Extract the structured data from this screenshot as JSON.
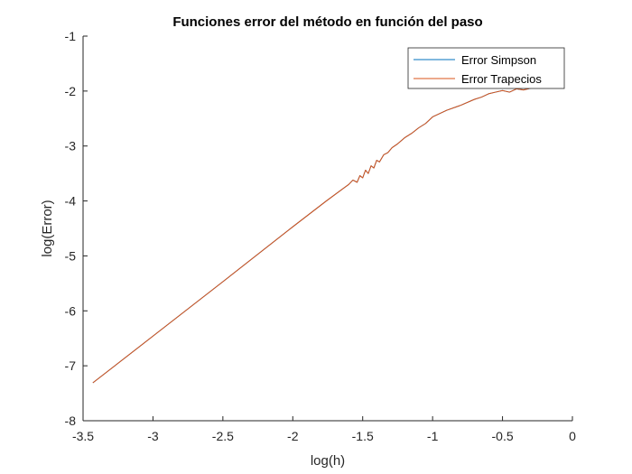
{
  "chart_data": {
    "type": "line",
    "title": "Funciones error del método en función del paso",
    "xlabel": "log(h)",
    "ylabel": "log(Error)",
    "xlim": [
      -3.5,
      0
    ],
    "ylim": [
      -8,
      -1
    ],
    "xticks": [
      -3.5,
      -3,
      -2.5,
      -2,
      -1.5,
      -1,
      -0.5,
      0
    ],
    "xtick_labels": [
      "-3.5",
      "-3",
      "-2.5",
      "-2",
      "-1.5",
      "-1",
      "-0.5",
      "0"
    ],
    "yticks": [
      -8,
      -7,
      -6,
      -5,
      -4,
      -3,
      -2,
      -1
    ],
    "ytick_labels": [
      "-8",
      "-7",
      "-6",
      "-5",
      "-4",
      "-3",
      "-2",
      "-1"
    ],
    "grid": false,
    "legend_position": "top-right",
    "series": [
      {
        "name": "Error Simpson",
        "color": "#0072BD",
        "x": [
          -3.43,
          -3.0,
          -2.5,
          -2.0,
          -1.76,
          -1.6,
          -1.57,
          -1.54,
          -1.52,
          -1.5,
          -1.48,
          -1.46,
          -1.44,
          -1.42,
          -1.4,
          -1.38,
          -1.35,
          -1.32,
          -1.29,
          -1.25,
          -1.2,
          -1.15,
          -1.1,
          -1.05,
          -1.0,
          -0.9,
          -0.8,
          -0.7,
          -0.65,
          -0.6,
          -0.55,
          -0.5,
          -0.45,
          -0.4,
          -0.35,
          -0.3
        ],
        "y": [
          -7.31,
          -6.46,
          -5.47,
          -4.47,
          -4.0,
          -3.7,
          -3.62,
          -3.66,
          -3.54,
          -3.58,
          -3.44,
          -3.5,
          -3.36,
          -3.4,
          -3.26,
          -3.29,
          -3.16,
          -3.12,
          -3.03,
          -2.96,
          -2.85,
          -2.77,
          -2.67,
          -2.59,
          -2.47,
          -2.35,
          -2.26,
          -2.15,
          -2.11,
          -2.05,
          -2.02,
          -1.99,
          -2.02,
          -1.96,
          -1.98,
          -1.95
        ]
      },
      {
        "name": "Error Trapecios",
        "color": "#D95319",
        "x": [
          -3.43,
          -3.0,
          -2.5,
          -2.0,
          -1.76,
          -1.6,
          -1.57,
          -1.54,
          -1.52,
          -1.5,
          -1.48,
          -1.46,
          -1.44,
          -1.42,
          -1.4,
          -1.38,
          -1.35,
          -1.32,
          -1.29,
          -1.25,
          -1.2,
          -1.15,
          -1.1,
          -1.05,
          -1.0,
          -0.9,
          -0.8,
          -0.7,
          -0.65,
          -0.6,
          -0.55,
          -0.5,
          -0.45,
          -0.4,
          -0.35,
          -0.3
        ],
        "y": [
          -7.31,
          -6.46,
          -5.47,
          -4.47,
          -4.0,
          -3.7,
          -3.62,
          -3.66,
          -3.54,
          -3.58,
          -3.44,
          -3.5,
          -3.36,
          -3.4,
          -3.26,
          -3.29,
          -3.16,
          -3.12,
          -3.03,
          -2.96,
          -2.85,
          -2.77,
          -2.67,
          -2.59,
          -2.47,
          -2.35,
          -2.26,
          -2.15,
          -2.11,
          -2.05,
          -2.02,
          -1.99,
          -2.02,
          -1.96,
          -1.98,
          -1.95
        ]
      }
    ]
  }
}
